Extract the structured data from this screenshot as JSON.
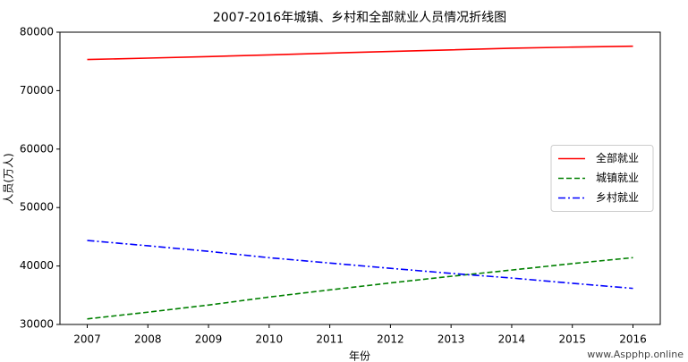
{
  "chart_data": {
    "type": "line",
    "title": "2007-2016年城镇、乡村和全部就业人员情况折线图",
    "x_label": "年份",
    "y_label": "人员(万人)",
    "x": [
      2007,
      2008,
      2009,
      2010,
      2011,
      2012,
      2013,
      2014,
      2015,
      2016
    ],
    "series": [
      {
        "name": "全部就业",
        "color": "#ff0000",
        "linestyle": "solid",
        "values": [
          75321,
          75564,
          75828,
          76105,
          76420,
          76704,
          76977,
          77253,
          77451,
          77603
        ]
      },
      {
        "name": "城镇就业",
        "color": "#008000",
        "linestyle": "dashed",
        "values": [
          30953,
          32103,
          33322,
          34687,
          35914,
          37102,
          38240,
          39310,
          40410,
          41428
        ]
      },
      {
        "name": "乡村就业",
        "color": "#0000ff",
        "linestyle": "dashdot",
        "values": [
          44368,
          43461,
          42506,
          41418,
          40506,
          39602,
          38737,
          37943,
          37041,
          36175
        ]
      }
    ],
    "xlim": [
      2006.55,
      2016.45
    ],
    "xticks": [
      2007,
      2008,
      2009,
      2010,
      2011,
      2012,
      2013,
      2014,
      2015,
      2016
    ],
    "ylim": [
      30000,
      80000
    ],
    "yticks": [
      30000,
      40000,
      50000,
      60000,
      70000,
      80000
    ],
    "legend": "right",
    "watermark": "www.Aspphp.online"
  }
}
